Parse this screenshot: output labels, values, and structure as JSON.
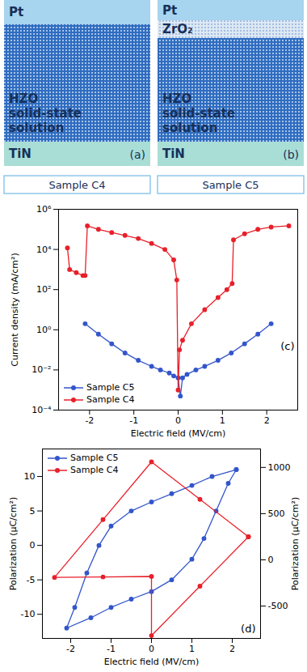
{
  "schematics": [
    {
      "panel": "(a)",
      "sample": "Sample C4",
      "layers": [
        "Pt",
        "HZO solid-state solution",
        "TiN"
      ]
    },
    {
      "panel": "(b)",
      "sample": "Sample C5",
      "layers": [
        "Pt",
        "ZrO₂",
        "HZO solid-state solution",
        "TiN"
      ]
    }
  ],
  "chart_data": [
    {
      "type": "line",
      "annotations": [
        "(c)"
      ],
      "x_label": "Electric field (MV/cm)",
      "y_label": "Current density (mA/cm²)",
      "log": "y",
      "grid": false,
      "legend": "lower-left",
      "xlim": [
        -2.7,
        2.7
      ],
      "xticks": [
        -2,
        -1,
        0,
        1,
        2
      ],
      "ylim": [
        0.0001,
        1000000
      ],
      "yticks": [
        {
          "value": 0.0001,
          "label": "10⁻⁴"
        },
        {
          "value": 0.01,
          "label": "10⁻²"
        },
        {
          "value": 1,
          "label": "10⁰"
        },
        {
          "value": 100,
          "label": "10²"
        },
        {
          "value": 10000,
          "label": "10⁴"
        },
        {
          "value": 1000000,
          "label": "10⁶"
        }
      ],
      "series": [
        {
          "name": "Sample C5",
          "color": "#3355cc",
          "marker": "circle",
          "line_style": "solid",
          "x": [
            -2.1,
            -1.8,
            -1.5,
            -1.2,
            -0.9,
            -0.6,
            -0.4,
            -0.2,
            -0.1,
            0,
            0.05,
            0.1,
            0.2,
            0.4,
            0.6,
            0.9,
            1.2,
            1.5,
            1.8,
            2.1
          ],
          "values": [
            2,
            0.6,
            0.2,
            0.07,
            0.03,
            0.015,
            0.01,
            0.007,
            0.005,
            0.004,
            0.0005,
            0.004,
            0.006,
            0.01,
            0.015,
            0.03,
            0.07,
            0.2,
            0.6,
            2
          ]
        },
        {
          "name": "Sample C4",
          "color": "#e8202a",
          "marker": "circle",
          "line_style": "solid",
          "x": [
            -2.5,
            -2.45,
            -2.3,
            -2.15,
            -2.1,
            -2.05,
            -1.8,
            -1.5,
            -1.2,
            -0.9,
            -0.6,
            -0.3,
            -0.1,
            -0.03,
            0,
            0.03,
            0.1,
            0.3,
            0.6,
            0.9,
            1.1,
            1.22,
            1.25,
            1.5,
            1.8,
            2.1,
            2.5
          ],
          "values": [
            12000,
            1000,
            700,
            500,
            500,
            150000,
            100000,
            70000,
            50000,
            35000,
            20000,
            10000,
            3000,
            300,
            0.001,
            0.1,
            0.3,
            2,
            10,
            40,
            100,
            200,
            30000,
            60000,
            100000,
            130000,
            150000
          ]
        }
      ]
    },
    {
      "type": "line",
      "annotations": [
        "(d)"
      ],
      "x_label": "Electric field (MV/cm)",
      "y_label": "Polarization (µC/cm²)",
      "y2_label": "Polarization (µC/cm²)",
      "grid": false,
      "legend": "upper-left",
      "xlim": [
        -2.7,
        2.7
      ],
      "xticks": [
        -2,
        -1,
        0,
        1,
        2
      ],
      "ylim": [
        -13.5,
        14
      ],
      "yticks": [
        -10,
        -5,
        0,
        5,
        10
      ],
      "y2lim": [
        -850,
        1200
      ],
      "y2ticks": [
        -500,
        0,
        500,
        1000
      ],
      "series": [
        {
          "name": "Sample C5",
          "color": "#3355cc",
          "marker": "circle",
          "line_style": "solid",
          "x": [
            2.1,
            1.5,
            1,
            0.5,
            0,
            -0.5,
            -1,
            -1.3,
            -1.6,
            -1.9,
            -2.1,
            -1.5,
            -1,
            -0.5,
            0,
            0.5,
            1,
            1.3,
            1.6,
            1.9,
            2.1
          ],
          "values": [
            11,
            10,
            8.7,
            7.5,
            6.3,
            5,
            2.8,
            0,
            -4,
            -9,
            -12,
            -10.5,
            -9,
            -7.8,
            -6.7,
            -5,
            -2,
            1,
            5,
            9,
            11
          ]
        },
        {
          "name": "Sample C4",
          "color": "#e8202a",
          "marker": "circle",
          "line_style": "solid",
          "axis": "y2",
          "x": [
            2.4,
            1.2,
            0,
            -1.2,
            -2.4,
            -1.2,
            0,
            0,
            1.2,
            2.4
          ],
          "values": [
            250,
            655,
            1060,
            435,
            -190,
            -185,
            -180,
            -820,
            -285,
            250
          ]
        }
      ]
    }
  ]
}
